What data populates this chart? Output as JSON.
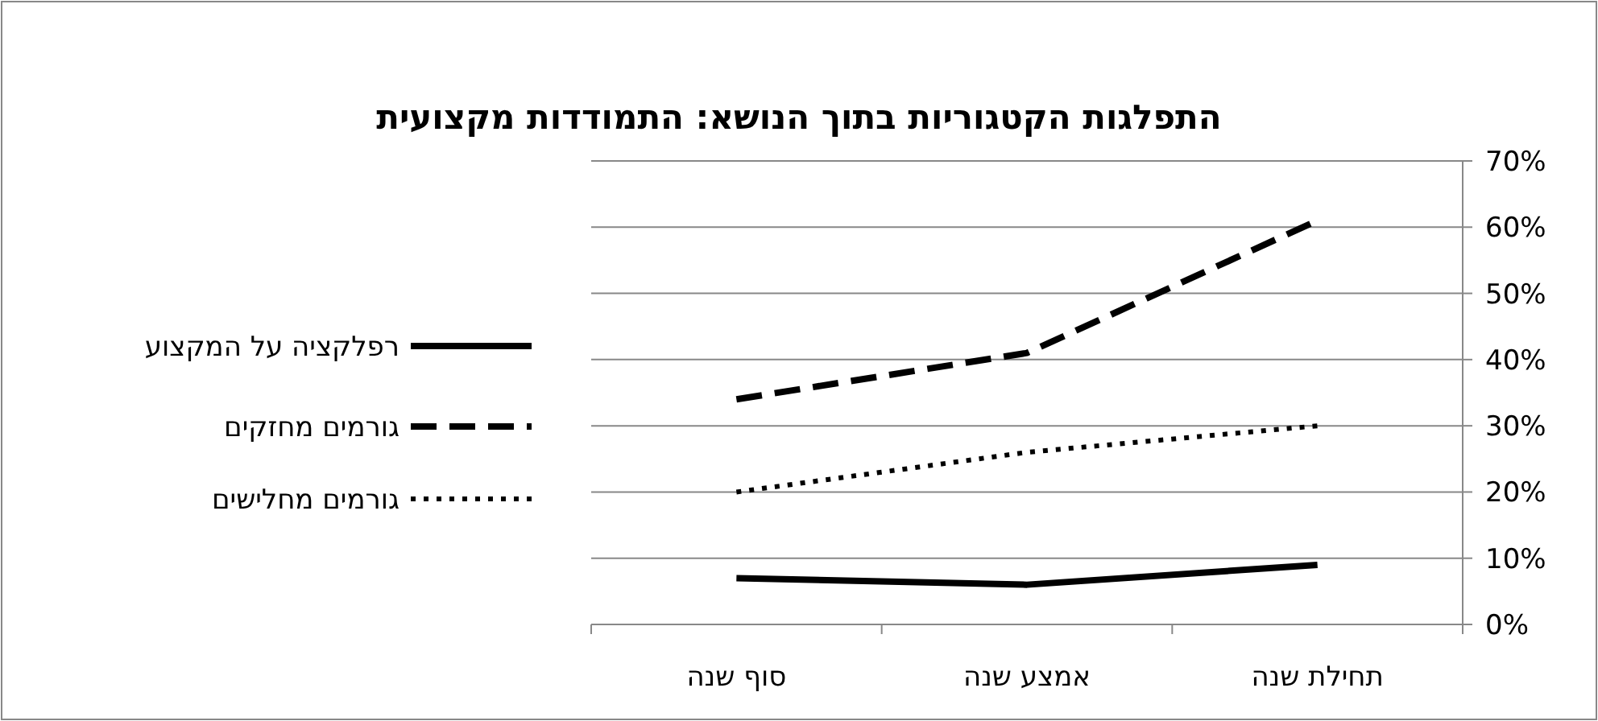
{
  "chart_data": {
    "type": "line",
    "title": "התפלגות הקטגוריות בתוך הנושא: התמודדות מקצועית",
    "categories": [
      "סוף שנה",
      "אמצע שנה",
      "תחילת שנה"
    ],
    "series": [
      {
        "name": "רפלקציה על המקצוע",
        "color": "#000000",
        "line_style": "solid",
        "values": [
          7,
          6,
          9
        ]
      },
      {
        "name": "גורמים מחזקים",
        "color": "#000000",
        "line_style": "dashed",
        "values": [
          34,
          41,
          61
        ]
      },
      {
        "name": "גורמים מחלישים",
        "color": "#000000",
        "line_style": "dotted",
        "values": [
          20,
          26,
          30
        ]
      }
    ],
    "ylim": [
      0,
      70
    ],
    "yticks": [
      {
        "value": 0,
        "label": "0%"
      },
      {
        "value": 10,
        "label": "10%"
      },
      {
        "value": 20,
        "label": "20%"
      },
      {
        "value": 30,
        "label": "30%"
      },
      {
        "value": 40,
        "label": "40%"
      },
      {
        "value": 50,
        "label": "50%"
      },
      {
        "value": 60,
        "label": "60%"
      },
      {
        "value": 70,
        "label": "70%"
      }
    ],
    "grid": "y",
    "legend": "left",
    "marker": "none"
  }
}
